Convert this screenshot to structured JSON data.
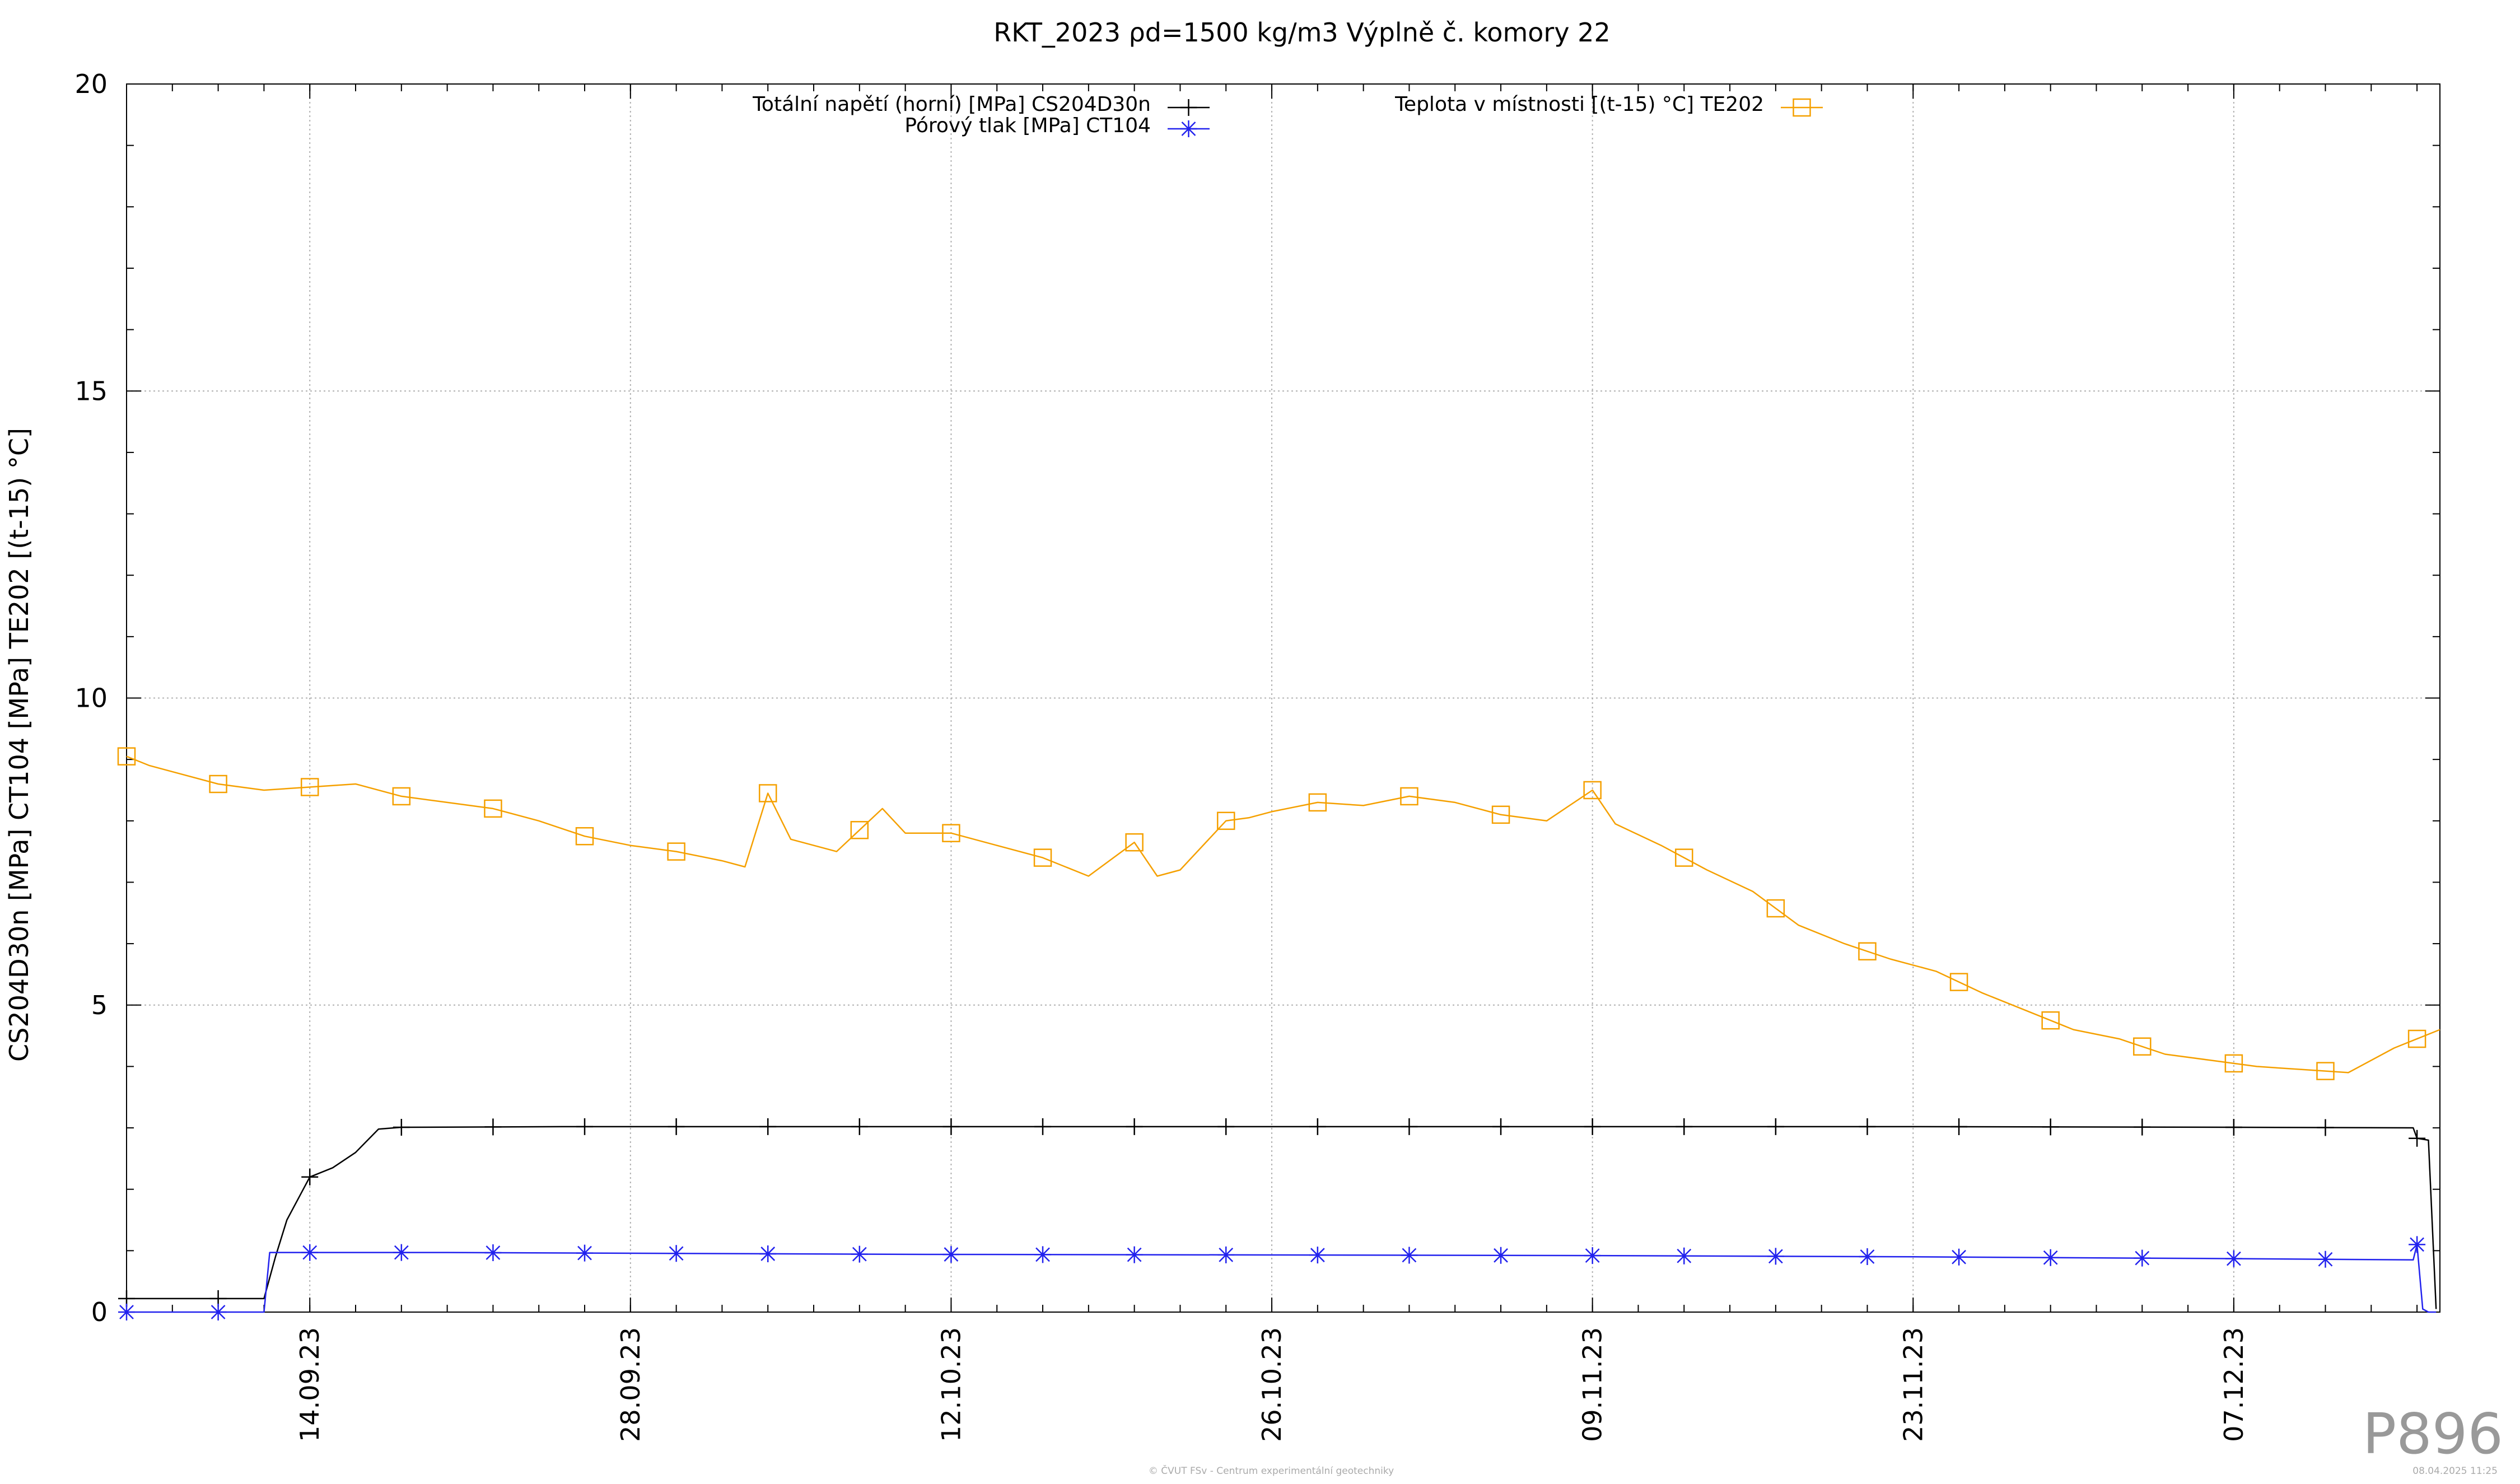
{
  "chart_data": {
    "type": "line",
    "title": "RKT_2023 ρd=1500 kg/m3 Výplně č. komory 22",
    "ylabel": "CS204D30n [MPa] CT104 [MPa] TE202 [(t-15) °C]",
    "xlabel": "",
    "ylim": [
      0,
      20
    ],
    "yticks": [
      0,
      5,
      10,
      15,
      20
    ],
    "xlim": [
      "2023-09-06",
      "2023-12-16"
    ],
    "xticks": [
      "14.09.23",
      "28.09.23",
      "12.10.23",
      "26.10.23",
      "09.11.23",
      "23.11.23",
      "07.12.23"
    ],
    "grid": true,
    "legend_position": "top",
    "series": [
      {
        "name": "Totální napětí (horní) [MPa] CS204D30n",
        "color": "#000000",
        "marker": "plus",
        "x": [
          "2023-09-06",
          "2023-09-12",
          "2023-09-12 12:00",
          "2023-09-13",
          "2023-09-14",
          "2023-09-15",
          "2023-09-16",
          "2023-09-17",
          "2023-09-18",
          "2023-09-25",
          "2023-10-10",
          "2023-10-26",
          "2023-11-09",
          "2023-11-23",
          "2023-12-07",
          "2023-12-14 20:00",
          "2023-12-15",
          "2023-12-15 12:00",
          "2023-12-15 20:00"
        ],
        "y": [
          0.22,
          0.22,
          0.9,
          1.5,
          2.2,
          2.35,
          2.6,
          2.98,
          3.01,
          3.02,
          3.02,
          3.02,
          3.02,
          3.02,
          3.01,
          3.0,
          2.83,
          2.8,
          0.05
        ]
      },
      {
        "name": "Pórový tlak [MPa] CT104",
        "color": "#2222ee",
        "marker": "star",
        "x": [
          "2023-09-06",
          "2023-09-12",
          "2023-09-12 06:00",
          "2023-09-20",
          "2023-10-10",
          "2023-10-26",
          "2023-11-09",
          "2023-11-23",
          "2023-12-07",
          "2023-12-14 20:00",
          "2023-12-15",
          "2023-12-15 06:00",
          "2023-12-15 12:00",
          "2023-12-15 20:00"
        ],
        "y": [
          0.0,
          0.0,
          0.97,
          0.97,
          0.94,
          0.93,
          0.92,
          0.9,
          0.87,
          0.85,
          1.1,
          0.05,
          0.0,
          0.0
        ]
      },
      {
        "name": "Teplota v místnosti [(t-15) °C] TE202",
        "color": "#f5a000",
        "marker": "square",
        "x": [
          "2023-09-06",
          "2023-09-07",
          "2023-09-08",
          "2023-09-10",
          "2023-09-12",
          "2023-09-14",
          "2023-09-16",
          "2023-09-18",
          "2023-09-20",
          "2023-09-22",
          "2023-09-24",
          "2023-09-26",
          "2023-09-28",
          "2023-09-30",
          "2023-10-02",
          "2023-10-03",
          "2023-10-04",
          "2023-10-05",
          "2023-10-07",
          "2023-10-09",
          "2023-10-10",
          "2023-10-12",
          "2023-10-14",
          "2023-10-16",
          "2023-10-18",
          "2023-10-20",
          "2023-10-21",
          "2023-10-22",
          "2023-10-24",
          "2023-10-25",
          "2023-10-26",
          "2023-10-28",
          "2023-10-30",
          "2023-11-01",
          "2023-11-03",
          "2023-11-05",
          "2023-11-07",
          "2023-11-09",
          "2023-11-10",
          "2023-11-12",
          "2023-11-14",
          "2023-11-16",
          "2023-11-18",
          "2023-11-20",
          "2023-11-22",
          "2023-11-24",
          "2023-11-26",
          "2023-11-28",
          "2023-11-30",
          "2023-12-02",
          "2023-12-04",
          "2023-12-06",
          "2023-12-08",
          "2023-12-10",
          "2023-12-12",
          "2023-12-14",
          "2023-12-16"
        ],
        "y": [
          9.05,
          8.9,
          8.8,
          8.6,
          8.5,
          8.55,
          8.6,
          8.4,
          8.3,
          8.2,
          8.0,
          7.75,
          7.6,
          7.5,
          7.35,
          7.25,
          8.45,
          7.7,
          7.5,
          8.2,
          7.8,
          7.8,
          7.6,
          7.4,
          7.1,
          7.65,
          7.1,
          7.2,
          8.0,
          8.05,
          8.15,
          8.3,
          8.25,
          8.4,
          8.3,
          8.1,
          8.0,
          8.5,
          7.95,
          7.6,
          7.2,
          6.85,
          6.3,
          6.0,
          5.75,
          5.55,
          5.2,
          4.9,
          4.6,
          4.45,
          4.2,
          4.1,
          4.0,
          3.95,
          3.9,
          4.3,
          4.6
        ]
      }
    ]
  },
  "chart_id_label": "P896",
  "footer_text": "© ČVUT FSv - Centrum experimentální geotechniky",
  "footer_date": "08.04.2025 11:25"
}
